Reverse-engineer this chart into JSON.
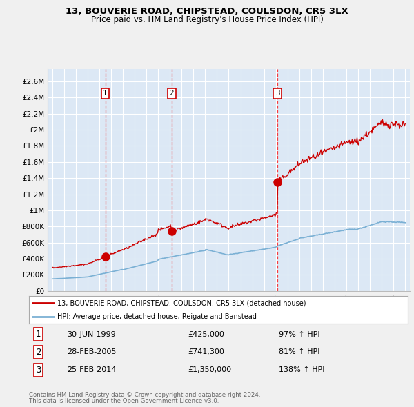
{
  "title": "13, BOUVERIE ROAD, CHIPSTEAD, COULSDON, CR5 3LX",
  "subtitle": "Price paid vs. HM Land Registry's House Price Index (HPI)",
  "background_color": "#f0f0f0",
  "plot_bg_color": "#dce8f5",
  "grid_color": "#ffffff",
  "red_line_color": "#cc0000",
  "blue_line_color": "#7ab0d4",
  "sales": [
    {
      "date": "30-JUN-1999",
      "price": 425000,
      "label": "1",
      "hpi_pct": "97%"
    },
    {
      "date": "28-FEB-2005",
      "price": 741300,
      "label": "2",
      "hpi_pct": "81%"
    },
    {
      "date": "25-FEB-2014",
      "price": 1350000,
      "label": "3",
      "hpi_pct": "138%"
    }
  ],
  "sale_years": [
    1999.5,
    2005.16,
    2014.15
  ],
  "sale_prices": [
    425000,
    741300,
    1350000
  ],
  "legend_property": "13, BOUVERIE ROAD, CHIPSTEAD, COULSDON, CR5 3LX (detached house)",
  "legend_hpi": "HPI: Average price, detached house, Reigate and Banstead",
  "footer1": "Contains HM Land Registry data © Crown copyright and database right 2024.",
  "footer2": "This data is licensed under the Open Government Licence v3.0.",
  "yticks": [
    0,
    200000,
    400000,
    600000,
    800000,
    1000000,
    1200000,
    1400000,
    1600000,
    1800000,
    2000000,
    2200000,
    2400000,
    2600000
  ],
  "ytick_labels": [
    "£0",
    "£200K",
    "£400K",
    "£600K",
    "£800K",
    "£1M",
    "£1.2M",
    "£1.4M",
    "£1.6M",
    "£1.8M",
    "£2M",
    "£2.2M",
    "£2.4M",
    "£2.6M"
  ],
  "sale_prices_fmt": [
    "£425,000",
    "£741,300",
    "£1,350,000"
  ],
  "sale_hpi_fmt": [
    "97% ↑ HPI",
    "81% ↑ HPI",
    "138% ↑ HPI"
  ]
}
